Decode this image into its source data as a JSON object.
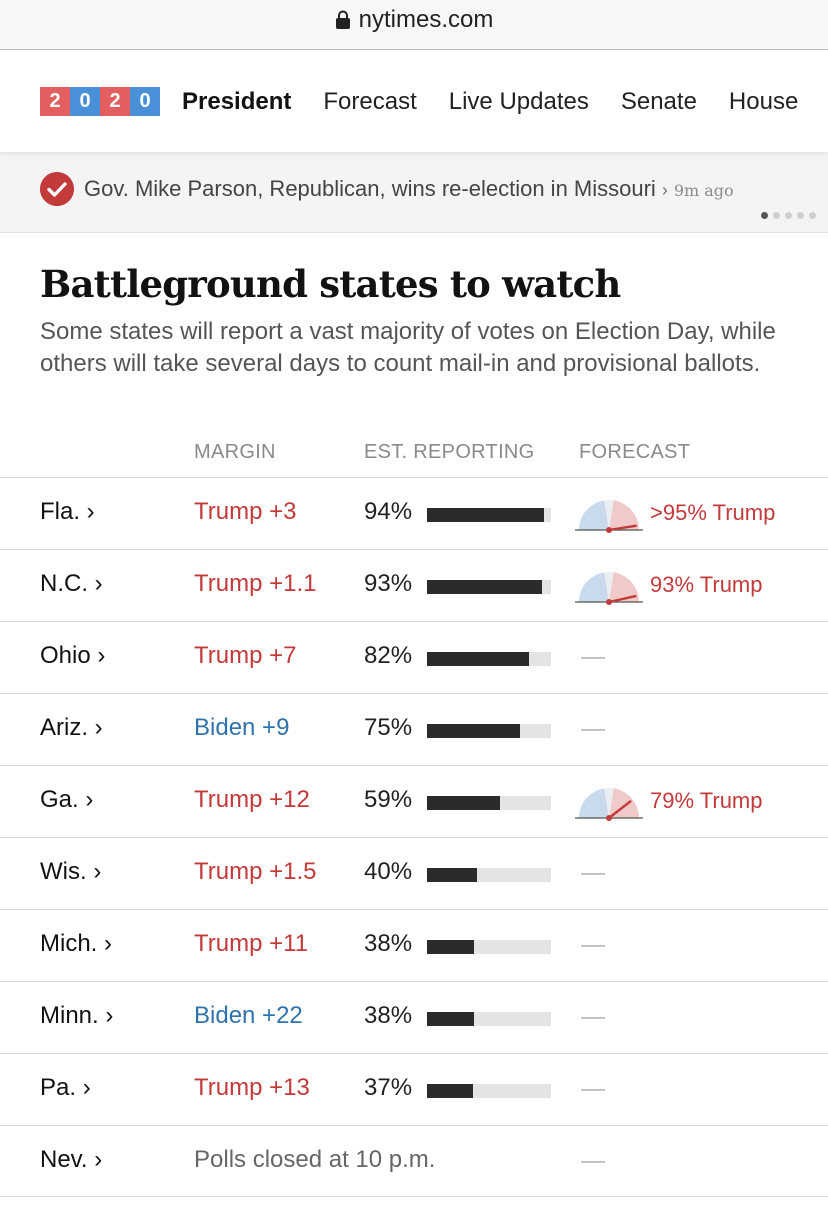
{
  "browser": {
    "url": "nytimes.com"
  },
  "nav": {
    "year_digits": [
      "2",
      "0",
      "2",
      "0"
    ],
    "links": [
      "President",
      "Forecast",
      "Live Updates",
      "Senate",
      "House"
    ]
  },
  "alert": {
    "text": "Gov. Mike Parson, Republican, wins re-election in Missouri",
    "chevron": "›",
    "time": "9m ago"
  },
  "headline": "Battleground states to watch",
  "dek": "Some states will report a vast majority of votes on Election Day, while others will take several days to count mail-in and provisional ballots.",
  "table": {
    "headers": {
      "margin": "MARGIN",
      "reporting": "EST. REPORTING",
      "forecast": "FORECAST"
    },
    "rows": [
      {
        "state": "Fla. ›",
        "margin": "Trump +3",
        "party": "rep",
        "reporting": "94%",
        "reporting_value": 94,
        "forecast": ">95% Trump",
        "forecast_value": 95
      },
      {
        "state": "N.C. ›",
        "margin": "Trump +1.1",
        "party": "rep",
        "reporting": "93%",
        "reporting_value": 93,
        "forecast": "93% Trump",
        "forecast_value": 93
      },
      {
        "state": "Ohio ›",
        "margin": "Trump +7",
        "party": "rep",
        "reporting": "82%",
        "reporting_value": 82,
        "forecast": "—",
        "forecast_value": null
      },
      {
        "state": "Ariz. ›",
        "margin": "Biden +9",
        "party": "dem",
        "reporting": "75%",
        "reporting_value": 75,
        "forecast": "—",
        "forecast_value": null
      },
      {
        "state": "Ga. ›",
        "margin": "Trump +12",
        "party": "rep",
        "reporting": "59%",
        "reporting_value": 59,
        "forecast": "79% Trump",
        "forecast_value": 79
      },
      {
        "state": "Wis. ›",
        "margin": "Trump +1.5",
        "party": "rep",
        "reporting": "40%",
        "reporting_value": 40,
        "forecast": "—",
        "forecast_value": null
      },
      {
        "state": "Mich. ›",
        "margin": "Trump +11",
        "party": "rep",
        "reporting": "38%",
        "reporting_value": 38,
        "forecast": "—",
        "forecast_value": null
      },
      {
        "state": "Minn. ›",
        "margin": "Biden +22",
        "party": "dem",
        "reporting": "38%",
        "reporting_value": 38,
        "forecast": "—",
        "forecast_value": null
      },
      {
        "state": "Pa. ›",
        "margin": "Trump +13",
        "party": "rep",
        "reporting": "37%",
        "reporting_value": 37,
        "forecast": "—",
        "forecast_value": null
      },
      {
        "state": "Nev. ›",
        "margin": "Polls closed at 10 p.m.",
        "party": "none",
        "reporting": "",
        "reporting_value": null,
        "forecast": "—",
        "forecast_value": null
      }
    ]
  },
  "colors": {
    "rep": "#c23a3a",
    "dem": "#2f73ae",
    "bar": "#2b2b2b",
    "bar_bg": "#e4e4e4"
  }
}
